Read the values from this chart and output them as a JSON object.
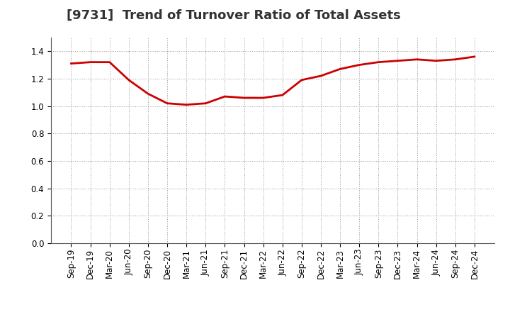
{
  "title": "[9731]  Trend of Turnover Ratio of Total Assets",
  "x_labels": [
    "Sep-19",
    "Dec-19",
    "Mar-20",
    "Jun-20",
    "Sep-20",
    "Dec-20",
    "Mar-21",
    "Jun-21",
    "Sep-21",
    "Dec-21",
    "Mar-22",
    "Jun-22",
    "Sep-22",
    "Dec-22",
    "Mar-23",
    "Jun-23",
    "Sep-23",
    "Dec-23",
    "Mar-24",
    "Jun-24",
    "Sep-24",
    "Dec-24"
  ],
  "values": [
    1.31,
    1.32,
    1.32,
    1.19,
    1.09,
    1.02,
    1.01,
    1.02,
    1.07,
    1.06,
    1.06,
    1.08,
    1.19,
    1.22,
    1.27,
    1.3,
    1.32,
    1.33,
    1.34,
    1.33,
    1.34,
    1.36
  ],
  "line_color": "#cc0000",
  "line_width": 2.0,
  "ylim": [
    0.0,
    1.5
  ],
  "yticks": [
    0.0,
    0.2,
    0.4,
    0.6,
    0.8,
    1.0,
    1.2,
    1.4
  ],
  "background_color": "#ffffff",
  "grid_color": "#999999",
  "title_fontsize": 13,
  "tick_fontsize": 8.5
}
